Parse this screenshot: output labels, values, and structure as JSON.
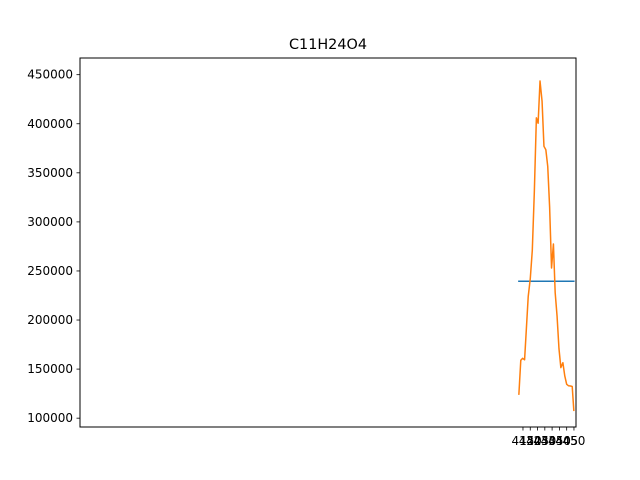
{
  "chart_data": {
    "type": "line",
    "title": "C11H24O4",
    "xlabel": "",
    "ylabel": "",
    "xlim": [
      110.92,
      451.4
    ],
    "ylim": [
      91000,
      467000
    ],
    "xticks": [
      415,
      420,
      425,
      430,
      435,
      440,
      445,
      450
    ],
    "yticks": [
      100000,
      150000,
      200000,
      250000,
      300000,
      350000,
      400000,
      450000
    ],
    "xtick_labels": [
      "415",
      "420",
      "425",
      "430",
      "435",
      "440",
      "445",
      "450"
    ],
    "ytick_labels": [
      "100000",
      "150000",
      "200000",
      "250000",
      "300000",
      "350000",
      "400000",
      "450000"
    ],
    "grid": false,
    "legend": "none",
    "series": [
      {
        "color": "#1f77b4",
        "x": [
          412.2,
          449.9
        ],
        "y": [
          239500,
          239500
        ]
      },
      {
        "color": "#ff7f0e",
        "x": [
          412.2,
          413.5,
          414.8,
          416.1,
          417.4,
          418.6,
          420.0,
          421.4,
          422.8,
          424.2,
          425.4,
          426.7,
          428.1,
          429.4,
          430.7,
          432.0,
          433.3,
          434.6,
          435.9,
          437.1,
          438.4,
          439.7,
          441.0,
          442.4,
          443.7,
          445.0,
          446.3,
          447.6,
          448.8,
          449.9
        ],
        "y": [
          124500,
          159000,
          161000,
          159500,
          193000,
          224000,
          242000,
          271000,
          331000,
          406000,
          400500,
          443500,
          423000,
          377000,
          373500,
          356500,
          315000,
          253000,
          277500,
          228000,
          204000,
          171000,
          151500,
          156500,
          143000,
          134500,
          133000,
          132800,
          132300,
          108000
        ]
      }
    ]
  }
}
